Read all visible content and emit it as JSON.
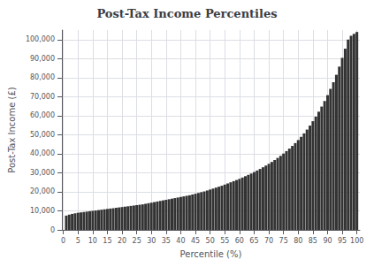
{
  "chart_data": {
    "type": "bar",
    "title": "Post-Tax Income Percentiles",
    "x_label": "Percentile (%)",
    "y_label": "Post-Tax Income (£)",
    "x": [
      1,
      2,
      3,
      4,
      5,
      6,
      7,
      8,
      9,
      10,
      11,
      12,
      13,
      14,
      15,
      16,
      17,
      18,
      19,
      20,
      21,
      22,
      23,
      24,
      25,
      26,
      27,
      28,
      29,
      30,
      31,
      32,
      33,
      34,
      35,
      36,
      37,
      38,
      39,
      40,
      41,
      42,
      43,
      44,
      45,
      46,
      47,
      48,
      49,
      50,
      51,
      52,
      53,
      54,
      55,
      56,
      57,
      58,
      59,
      60,
      61,
      62,
      63,
      64,
      65,
      66,
      67,
      68,
      69,
      70,
      71,
      72,
      73,
      74,
      75,
      76,
      77,
      78,
      79,
      80,
      81,
      82,
      83,
      84,
      85,
      86,
      87,
      88,
      89,
      90,
      91,
      92,
      93,
      94,
      95,
      96,
      97,
      98,
      99,
      100
    ],
    "values": [
      7500,
      8000,
      8400,
      8700,
      9000,
      9200,
      9400,
      9600,
      9800,
      10000,
      10200,
      10400,
      10600,
      10800,
      11000,
      11200,
      11400,
      11600,
      11800,
      12000,
      12200,
      12400,
      12600,
      12800,
      13000,
      13200,
      13400,
      13700,
      14000,
      14300,
      14600,
      14900,
      15200,
      15500,
      15800,
      16100,
      16400,
      16700,
      17000,
      17300,
      17600,
      17900,
      18200,
      18600,
      19000,
      19400,
      19800,
      20200,
      20700,
      21200,
      21700,
      22200,
      22700,
      23200,
      23800,
      24400,
      25000,
      25600,
      26200,
      26800,
      27500,
      28200,
      28900,
      29600,
      30400,
      31200,
      32000,
      32900,
      33800,
      34700,
      35700,
      36700,
      37800,
      38900,
      40100,
      41400,
      42700,
      44100,
      45600,
      47200,
      48900,
      50700,
      52700,
      54800,
      57100,
      59500,
      62100,
      64800,
      67700,
      70800,
      74100,
      77600,
      81500,
      85800,
      90400,
      95200,
      100000,
      102000,
      103000,
      104000
    ],
    "color": "#333333",
    "xlim": [
      -0.5,
      101
    ],
    "xticks": [
      0,
      5,
      10,
      15,
      20,
      25,
      30,
      35,
      40,
      45,
      50,
      55,
      60,
      65,
      70,
      75,
      80,
      85,
      90,
      95,
      100
    ],
    "ylim": [
      0,
      105000
    ],
    "yticks": [
      0,
      {
        "value": 10000,
        "label": "10,000"
      },
      {
        "value": 20000,
        "label": "20,000"
      },
      {
        "value": 30000,
        "label": "30,000"
      },
      {
        "value": 40000,
        "label": "40,000"
      },
      {
        "value": 50000,
        "label": "50,000"
      },
      {
        "value": 60000,
        "label": "60,000"
      },
      {
        "value": 70000,
        "label": "70,000"
      },
      {
        "value": 80000,
        "label": "80,000"
      },
      {
        "value": 90000,
        "label": "90,000"
      },
      {
        "value": 100000,
        "label": "100,000"
      }
    ],
    "grid": true
  }
}
